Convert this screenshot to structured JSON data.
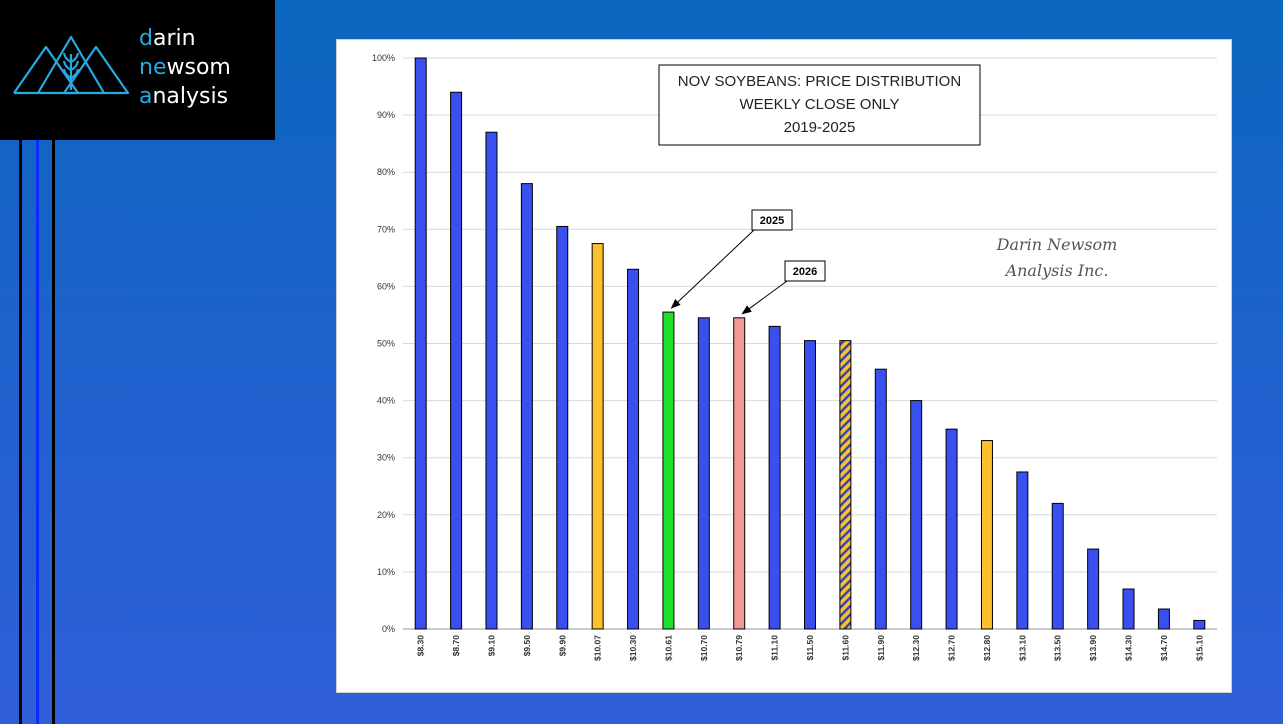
{
  "brand": {
    "line1_first": "d",
    "line1_rest": "arin",
    "line2_first": "ne",
    "line2_mid": "w",
    "line2_rest": "som",
    "line3_first": "a",
    "line3_rest": "nalysis",
    "accent_color": "#27a9e1",
    "icon": "mountain-wheat-logo-icon"
  },
  "chart_data": {
    "type": "bar",
    "title_lines": [
      "NOV SOYBEANS: PRICE DISTRIBUTION",
      "WEEKLY CLOSE ONLY",
      "2019-2025"
    ],
    "watermark_lines": [
      "Darin Newsom",
      "Analysis Inc."
    ],
    "xlabel": "",
    "ylabel": "",
    "ylim": [
      0,
      100
    ],
    "y_ticks": [
      "0%",
      "10%",
      "20%",
      "30%",
      "40%",
      "50%",
      "60%",
      "70%",
      "80%",
      "90%",
      "100%"
    ],
    "grid": true,
    "categories": [
      "$8.30",
      "$8.70",
      "$9.10",
      "$9.50",
      "$9.90",
      "$10.07",
      "$10.30",
      "$10.61",
      "$10.70",
      "$10.79",
      "$11.10",
      "$11.50",
      "$11.60",
      "$11.90",
      "$12.30",
      "$12.70",
      "$12.80",
      "$13.10",
      "$13.50",
      "$13.90",
      "$14.30",
      "$14.70",
      "$15.10"
    ],
    "values": [
      100,
      94,
      87,
      78,
      70.5,
      67.5,
      63,
      55.5,
      54.5,
      54.5,
      53,
      50.5,
      50.5,
      45.5,
      40,
      35,
      33,
      27.5,
      22,
      14,
      7,
      3.5,
      1.5
    ],
    "bar_styles": [
      "blue",
      "blue",
      "blue",
      "blue",
      "blue",
      "gold",
      "blue",
      "green",
      "blue",
      "pink",
      "blue",
      "blue",
      "hatched",
      "blue",
      "blue",
      "blue",
      "gold",
      "blue",
      "blue",
      "blue",
      "blue",
      "blue",
      "blue"
    ],
    "colors": {
      "blue": "#3a4ff0",
      "gold": "#fcbf2f",
      "green": "#22e02a",
      "pink": "#f19a93",
      "hatch_stripe": "#2f45b5"
    },
    "annotations": [
      {
        "label": "2025",
        "target_category": "$10.61"
      },
      {
        "label": "2026",
        "target_category": "$10.79"
      }
    ]
  }
}
